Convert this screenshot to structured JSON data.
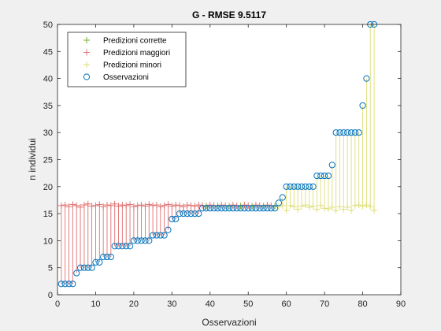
{
  "chart_data": {
    "type": "scatter",
    "title": "G - RMSE 9.5117",
    "xlabel": "Osservazioni",
    "ylabel": "n individui",
    "xlim": [
      0,
      90
    ],
    "ylim": [
      0,
      50
    ],
    "xticks": [
      0,
      10,
      20,
      30,
      40,
      50,
      60,
      70,
      80,
      90
    ],
    "yticks": [
      0,
      5,
      10,
      15,
      20,
      25,
      30,
      35,
      40,
      45,
      50
    ],
    "legend_position": "top-left",
    "colors": {
      "corrette": "#77ac30",
      "maggiori": "#e07070",
      "minori": "#dede7a",
      "osservazioni": "#0072bd"
    },
    "legend": [
      {
        "key": "corrette",
        "label": "Predizioni corrette",
        "marker": "+"
      },
      {
        "key": "maggiori",
        "label": "Predizioni maggiori",
        "marker": "+"
      },
      {
        "key": "minori",
        "label": "Predizioni minori",
        "marker": "+"
      },
      {
        "key": "osservazioni",
        "label": "Osservazioni",
        "marker": "o"
      }
    ],
    "observations": [
      2,
      2,
      2,
      2,
      4,
      5,
      5,
      5,
      5,
      6,
      6,
      7,
      7,
      7,
      9,
      9,
      9,
      9,
      9,
      10,
      10,
      10,
      10,
      10,
      11,
      11,
      11,
      11,
      12,
      14,
      14,
      15,
      15,
      15,
      15,
      15,
      15,
      16,
      16,
      16,
      16,
      16,
      16,
      16,
      16,
      16,
      16,
      16,
      16,
      16,
      16,
      16,
      16,
      16,
      16,
      16,
      16,
      17,
      18,
      20,
      20,
      20,
      20,
      20,
      20,
      20,
      20,
      22,
      22,
      22,
      22,
      24,
      30,
      30,
      30,
      30,
      30,
      30,
      30,
      35,
      40,
      50,
      50
    ],
    "predictions": [
      16.5,
      16.6,
      16.3,
      16.7,
      16.5,
      16.2,
      16.6,
      16.8,
      16.4,
      16.5,
      16.7,
      16.3,
      16.6,
      16.5,
      16.8,
      16.4,
      16.6,
      16.5,
      16.7,
      16.3,
      16.5,
      16.6,
      16.4,
      16.7,
      16.5,
      16.6,
      16.3,
      16.5,
      16.7,
      16.4,
      16.6,
      16.5,
      16.3,
      16.6,
      16.5,
      16.4,
      16.6,
      16.5,
      16.4,
      16.6,
      16.5,
      16.4,
      16.6,
      16.5,
      16.4,
      16.6,
      16.5,
      16.4,
      16.6,
      16.5,
      16.4,
      16.6,
      16.5,
      16.4,
      16.6,
      16.5,
      16.4,
      16.3,
      16.5,
      15.6,
      16.5,
      16.3,
      15.8,
      16.4,
      16.6,
      16.2,
      16.4,
      15.8,
      16.5,
      16.0,
      15.9,
      16.2,
      15.6,
      16.3,
      15.8,
      16.2,
      15.6,
      16.5,
      16.6,
      16.4,
      16.6,
      16.3,
      15.6
    ]
  }
}
